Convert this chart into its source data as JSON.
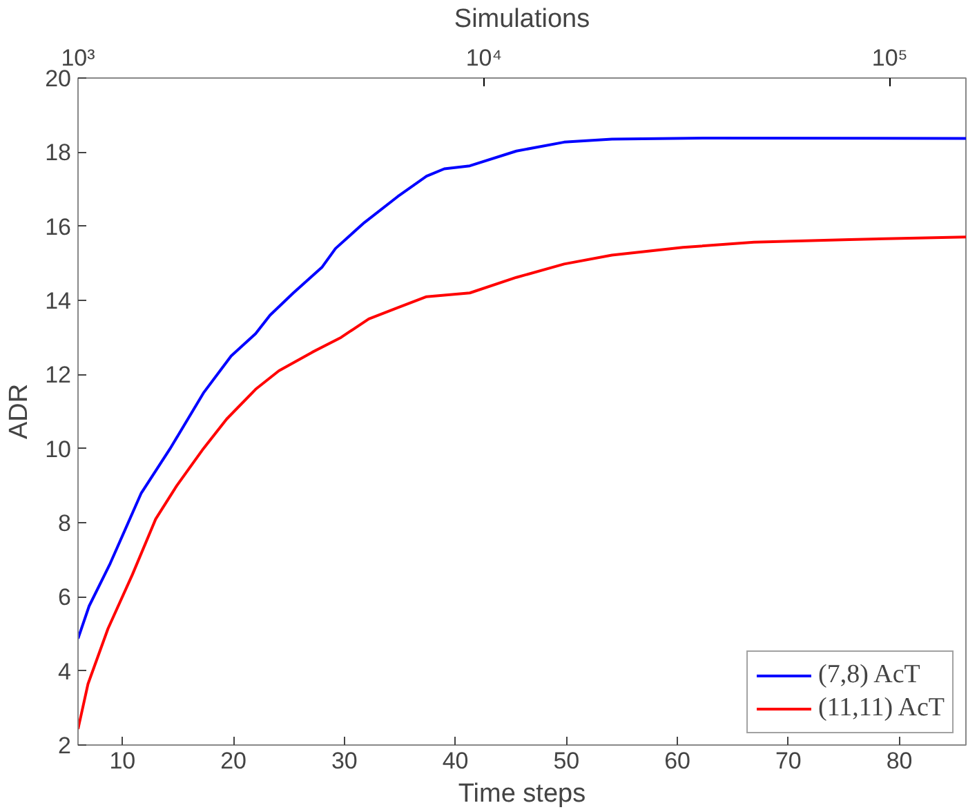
{
  "chart_data": {
    "type": "line",
    "xlabel": "Time steps",
    "ylabel": "ADR",
    "x2label": "Simulations",
    "xlim": [
      6,
      86
    ],
    "xticks": [
      10,
      20,
      30,
      40,
      50,
      60,
      70,
      80
    ],
    "ylim": [
      2,
      20
    ],
    "yticks": [
      2,
      4,
      6,
      8,
      10,
      12,
      14,
      16,
      18,
      20
    ],
    "x2lim": [
      1000,
      154000
    ],
    "x2ticks": [
      {
        "value": 1000,
        "label": "10³"
      },
      {
        "value": 10000,
        "label": "10⁴"
      },
      {
        "value": 100000,
        "label": "10⁵"
      }
    ],
    "log": "x2",
    "grid": false,
    "legend": "bottom right",
    "marker": "none",
    "line_style": "solid",
    "series": [
      {
        "name": "(7,8) AcT",
        "color": "#0000ff",
        "x": [
          6,
          7,
          8.9,
          11.7,
          14.3,
          17.3,
          19.8,
          22,
          23.3,
          25.4,
          28,
          29.2,
          31.8,
          34.8,
          37.4,
          39,
          41.3,
          45.5,
          49.8,
          54.1,
          62.7,
          86
        ],
        "values": [
          4.87,
          5.75,
          6.9,
          8.8,
          10.0,
          11.5,
          12.5,
          13.1,
          13.6,
          14.2,
          14.9,
          15.4,
          16.1,
          16.8,
          17.35,
          17.55,
          17.63,
          18.03,
          18.27,
          18.35,
          18.38,
          18.37
        ]
      },
      {
        "name": "(11,11) AcT",
        "color": "#ff0000",
        "x": [
          6,
          6.9,
          8.7,
          10.9,
          13,
          14.9,
          17.3,
          19.4,
          22,
          24.1,
          27.1,
          29.7,
          32.2,
          34.8,
          37.4,
          41.3,
          45.5,
          49.8,
          54.1,
          60.5,
          66.9,
          75.5,
          86
        ],
        "values": [
          2.43,
          3.65,
          5.14,
          6.6,
          8.1,
          9.0,
          10.0,
          10.8,
          11.6,
          12.1,
          12.6,
          13.0,
          13.5,
          13.8,
          14.1,
          14.2,
          14.62,
          14.98,
          15.22,
          15.43,
          15.57,
          15.64,
          15.71
        ]
      }
    ]
  }
}
